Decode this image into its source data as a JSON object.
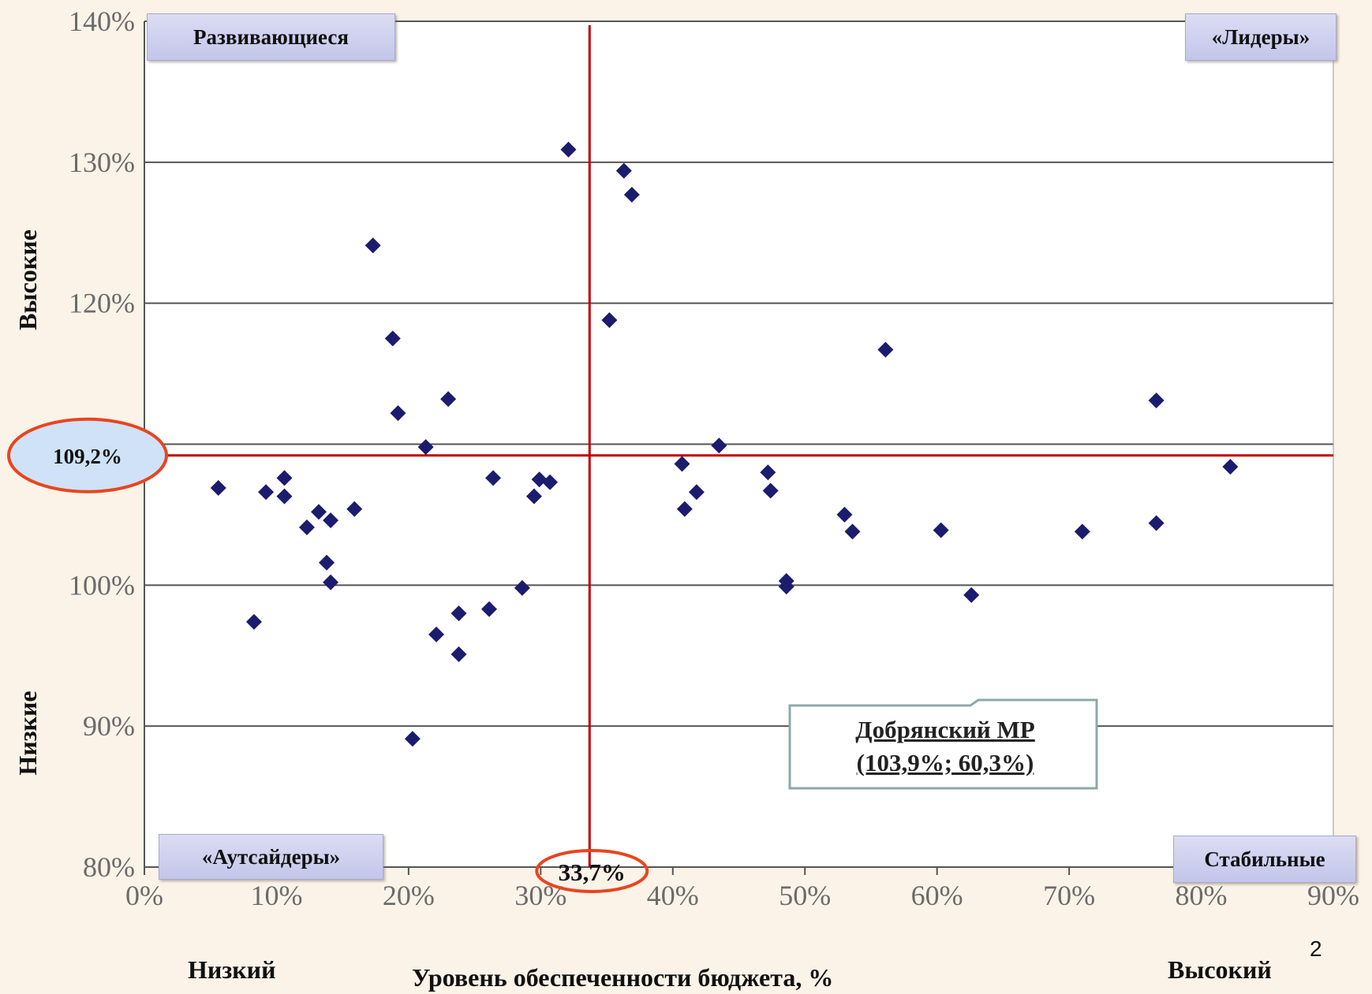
{
  "chart_data": {
    "type": "scatter",
    "xlim": [
      0,
      90
    ],
    "ylim": [
      80,
      140
    ],
    "x_ticks": [
      "0%",
      "10%",
      "20%",
      "30%",
      "40%",
      "50%",
      "60%",
      "70%",
      "80%",
      "90%"
    ],
    "y_ticks": [
      "80%",
      "90%",
      "100%",
      "110%",
      "120%",
      "130%",
      "140%"
    ],
    "grid": "horizontal",
    "points": [
      {
        "x": 5.6,
        "y": 106.9
      },
      {
        "x": 8.3,
        "y": 97.4
      },
      {
        "x": 9.2,
        "y": 106.6
      },
      {
        "x": 10.6,
        "y": 107.6
      },
      {
        "x": 10.6,
        "y": 106.3
      },
      {
        "x": 12.3,
        "y": 104.1
      },
      {
        "x": 13.2,
        "y": 105.2
      },
      {
        "x": 13.8,
        "y": 101.6
      },
      {
        "x": 14.1,
        "y": 104.6
      },
      {
        "x": 14.1,
        "y": 100.2
      },
      {
        "x": 15.9,
        "y": 105.4
      },
      {
        "x": 17.3,
        "y": 124.1
      },
      {
        "x": 18.8,
        "y": 117.5
      },
      {
        "x": 19.2,
        "y": 112.2
      },
      {
        "x": 20.3,
        "y": 89.1
      },
      {
        "x": 21.3,
        "y": 109.8
      },
      {
        "x": 22.1,
        "y": 96.5
      },
      {
        "x": 23.0,
        "y": 113.2
      },
      {
        "x": 23.8,
        "y": 95.1
      },
      {
        "x": 23.8,
        "y": 98.0
      },
      {
        "x": 26.1,
        "y": 98.3
      },
      {
        "x": 26.4,
        "y": 107.6
      },
      {
        "x": 28.6,
        "y": 99.8
      },
      {
        "x": 29.5,
        "y": 106.3
      },
      {
        "x": 29.9,
        "y": 107.5
      },
      {
        "x": 30.7,
        "y": 107.3
      },
      {
        "x": 32.1,
        "y": 130.9
      },
      {
        "x": 35.2,
        "y": 118.8
      },
      {
        "x": 36.3,
        "y": 129.4
      },
      {
        "x": 36.9,
        "y": 127.7
      },
      {
        "x": 40.7,
        "y": 108.6
      },
      {
        "x": 40.9,
        "y": 105.4
      },
      {
        "x": 41.8,
        "y": 106.6
      },
      {
        "x": 43.5,
        "y": 109.9
      },
      {
        "x": 47.2,
        "y": 108.0
      },
      {
        "x": 47.4,
        "y": 106.7
      },
      {
        "x": 48.6,
        "y": 100.3
      },
      {
        "x": 48.6,
        "y": 99.9
      },
      {
        "x": 53.0,
        "y": 105.0
      },
      {
        "x": 53.6,
        "y": 103.8
      },
      {
        "x": 56.1,
        "y": 116.7
      },
      {
        "x": 60.3,
        "y": 103.9
      },
      {
        "x": 62.6,
        "y": 99.3
      },
      {
        "x": 71.0,
        "y": 103.8
      },
      {
        "x": 76.6,
        "y": 113.1
      },
      {
        "x": 76.6,
        "y": 104.4
      },
      {
        "x": 82.2,
        "y": 108.4
      }
    ],
    "threshold_x": 33.7,
    "threshold_y": 109.2,
    "threshold_x_label": "33,7%",
    "threshold_y_label": "109,2%",
    "quadrants": {
      "top_left": "Развивающиеся",
      "top_right": "«Лидеры»",
      "bottom_left": "«Аутсайдеры»",
      "bottom_right": "Стабильные"
    },
    "ylabel_high": "Высокие",
    "ylabel_low": "Низкие",
    "xlabel_low": "Низкий",
    "xlabel_high": "Высокий",
    "xlabel": "Уровень обеспеченности бюджета, %",
    "callout": {
      "line1": "Добрянский МР",
      "line2": "(103,9%; 60,3%)"
    },
    "colors": {
      "points": "#1C1C6E",
      "threshold": "#C00000",
      "grid": "#555555",
      "highlight_ellipse": "#E8451E",
      "ellipse_fill": "#CFE2F7"
    }
  },
  "slide_number": "2"
}
